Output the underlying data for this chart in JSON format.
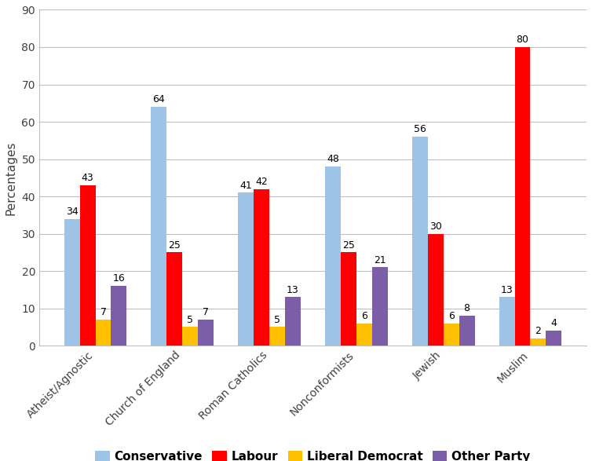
{
  "categories": [
    "Atheist/Agnostic",
    "Church of England",
    "Roman Catholics",
    "Nonconformists",
    "Jewish",
    "Muslim"
  ],
  "series": {
    "Conservative": [
      34,
      64,
      41,
      48,
      56,
      13
    ],
    "Labour": [
      43,
      25,
      42,
      25,
      30,
      80
    ],
    "Liberal Democrat": [
      7,
      5,
      5,
      6,
      6,
      2
    ],
    "Other Party": [
      16,
      7,
      13,
      21,
      8,
      4
    ]
  },
  "colors": {
    "Conservative": "#9DC3E6",
    "Labour": "#FF0000",
    "Liberal Democrat": "#FFC000",
    "Other Party": "#7B5EA7"
  },
  "ylabel": "Percentages",
  "ylim": [
    0,
    90
  ],
  "yticks": [
    0,
    10,
    20,
    30,
    40,
    50,
    60,
    70,
    80,
    90
  ],
  "bar_width": 0.18,
  "label_fontsize": 9,
  "tick_fontsize": 10,
  "legend_fontsize": 11,
  "ylabel_fontsize": 11,
  "background_color": "#FFFFFF",
  "grid_color": "#BFBFBF"
}
